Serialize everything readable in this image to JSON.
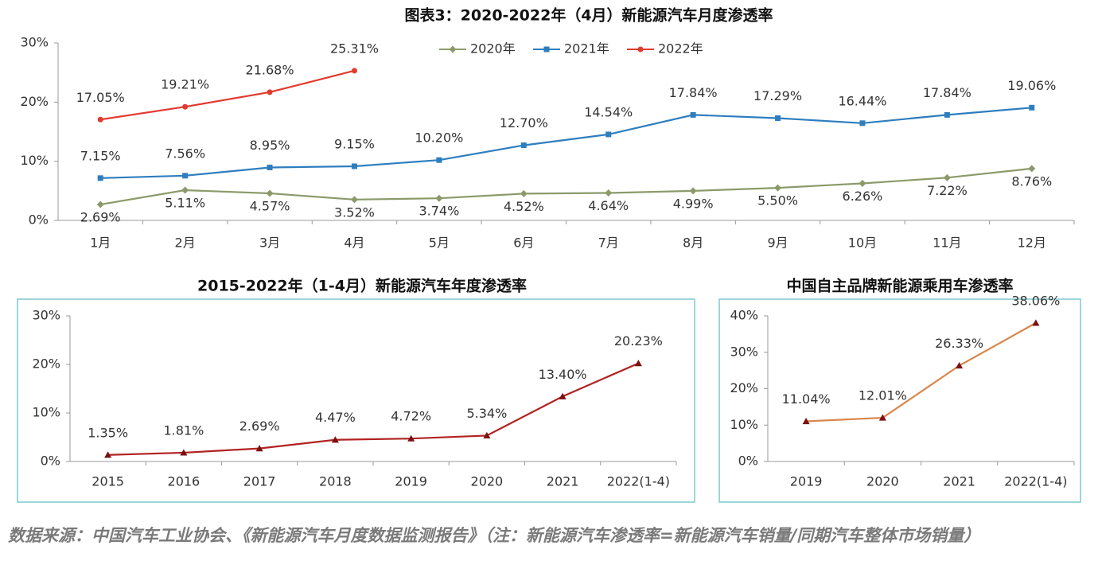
{
  "chart_data": [
    {
      "type": "line",
      "title": "图表3：2020-2022年（4月）新能源汽车月度渗透率",
      "categories": [
        "1月",
        "2月",
        "3月",
        "4月",
        "5月",
        "6月",
        "7月",
        "8月",
        "9月",
        "10月",
        "11月",
        "12月"
      ],
      "ylim": [
        0,
        30
      ],
      "yticks": [
        {
          "value": 0,
          "label": "0%"
        },
        {
          "value": 10,
          "label": "10%"
        },
        {
          "value": 20,
          "label": "20%"
        },
        {
          "value": 30,
          "label": "30%"
        }
      ],
      "legend": "top",
      "series": [
        {
          "name": "2020年",
          "color": "#8c9a6a",
          "marker": "diamond",
          "values": [
            2.69,
            5.11,
            4.57,
            3.52,
            3.74,
            4.52,
            4.64,
            4.99,
            5.5,
            6.26,
            7.22,
            8.76
          ],
          "value_labels": [
            "2.69%",
            "5.11%",
            "4.57%",
            "3.52%",
            "3.74%",
            "4.52%",
            "4.64%",
            "4.99%",
            "5.50%",
            "6.26%",
            "7.22%",
            "8.76%"
          ]
        },
        {
          "name": "2021年",
          "color": "#2e7ebf",
          "marker": "square",
          "values": [
            7.15,
            7.56,
            8.95,
            9.15,
            10.2,
            12.7,
            14.54,
            17.84,
            17.29,
            16.44,
            17.84,
            19.06
          ],
          "value_labels": [
            "7.15%",
            "7.56%",
            "8.95%",
            "9.15%",
            "10.20%",
            "12.70%",
            "14.54%",
            "17.84%",
            "17.29%",
            "16.44%",
            "17.84%",
            "19.06%"
          ]
        },
        {
          "name": "2022年",
          "color": "#e23a2e",
          "marker": "circle",
          "values": [
            17.05,
            19.21,
            21.68,
            25.31,
            null,
            null,
            null,
            null,
            null,
            null,
            null,
            null
          ],
          "value_labels": [
            "17.05%",
            "19.21%",
            "21.68%",
            "25.31%",
            null,
            null,
            null,
            null,
            null,
            null,
            null,
            null
          ]
        }
      ]
    },
    {
      "type": "line",
      "title": "2015-2022年（1-4月）新能源汽车年度渗透率",
      "categories": [
        "2015",
        "2016",
        "2017",
        "2018",
        "2019",
        "2020",
        "2021",
        "2022(1-4)"
      ],
      "ylim": [
        0,
        30
      ],
      "yticks": [
        {
          "value": 0,
          "label": "0%"
        },
        {
          "value": 10,
          "label": "10%"
        },
        {
          "value": 20,
          "label": "20%"
        },
        {
          "value": 30,
          "label": "30%"
        }
      ],
      "series": [
        {
          "color": "#b22222",
          "marker": "triangle",
          "values": [
            1.35,
            1.81,
            2.69,
            4.47,
            4.72,
            5.34,
            13.4,
            20.23
          ],
          "value_labels": [
            "1.35%",
            "1.81%",
            "2.69%",
            "4.47%",
            "4.72%",
            "5.34%",
            "13.40%",
            "20.23%"
          ]
        }
      ]
    },
    {
      "type": "line",
      "title": "中国自主品牌新能源乘用车渗透率",
      "categories": [
        "2019",
        "2020",
        "2021",
        "2022(1-4)"
      ],
      "ylim": [
        0,
        40
      ],
      "yticks": [
        {
          "value": 0,
          "label": "0%"
        },
        {
          "value": 10,
          "label": "10%"
        },
        {
          "value": 20,
          "label": "20%"
        },
        {
          "value": 30,
          "label": "30%"
        },
        {
          "value": 40,
          "label": "40%"
        }
      ],
      "series": [
        {
          "color": "#d9864a",
          "marker": "triangle",
          "values": [
            11.04,
            12.01,
            26.33,
            38.06
          ],
          "value_labels": [
            "11.04%",
            "12.01%",
            "26.33%",
            "38.06%"
          ]
        }
      ]
    }
  ],
  "source": "数据来源：中国汽车工业协会、《新能源汽车月度数据监测报告》（注：新能源汽车渗透率=新能源汽车销量/同期汽车整体市场销量）"
}
